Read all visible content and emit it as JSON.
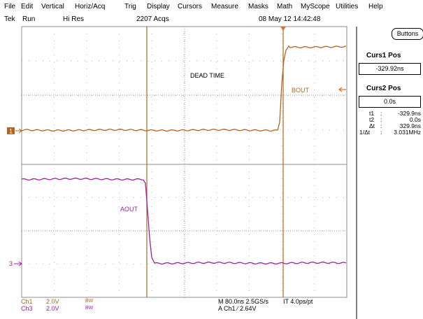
{
  "menu": [
    "File",
    "Edit",
    "Vertical",
    "Horiz/Acq",
    "Trig",
    "Display",
    "Cursors",
    "Measure",
    "Masks",
    "Math",
    "MyScope",
    "Utilities",
    "Help"
  ],
  "status": {
    "brand": "Tek",
    "run_state": "Run",
    "mode": "Hi Res",
    "acqs": "2207 Acqs",
    "datetime": "08 May 12 14:42:48"
  },
  "buttons_label": "Buttons",
  "cursor1": {
    "title": "Curs1 Pos",
    "value": "-329.92ns"
  },
  "cursor2": {
    "title": "Curs2 Pos",
    "value": "0.0s"
  },
  "readout": [
    {
      "k": "t1",
      "v": "-329.9ns"
    },
    {
      "k": "t2",
      "v": "0.0s"
    },
    {
      "k": "Δt",
      "v": "329.9ns"
    },
    {
      "k": "1/Δt",
      "v": "3.031MHz"
    }
  ],
  "annotations": {
    "dead_time": "DEAD TIME",
    "bout": "BOUT",
    "aout": "AOUT"
  },
  "markers": {
    "ch1": "1",
    "ch3": "3"
  },
  "channels": [
    {
      "name": "Ch1",
      "scale": "2.0V",
      "bw": "BW",
      "color": "#b4641e"
    },
    {
      "name": "Ch3",
      "scale": "2.0V",
      "bw": "BW",
      "color": "#a020a0"
    }
  ],
  "timebase": {
    "horiz": "M 80.0ns 2.5GS/s",
    "record": "IT 4.0ps/pt",
    "trigger": "A  Ch1  ∕  2.64V"
  },
  "colors": {
    "ch1": "#b4641e",
    "ch3": "#a020a0",
    "cursor": "#b4641e",
    "grid": "#8c8c8c"
  }
}
